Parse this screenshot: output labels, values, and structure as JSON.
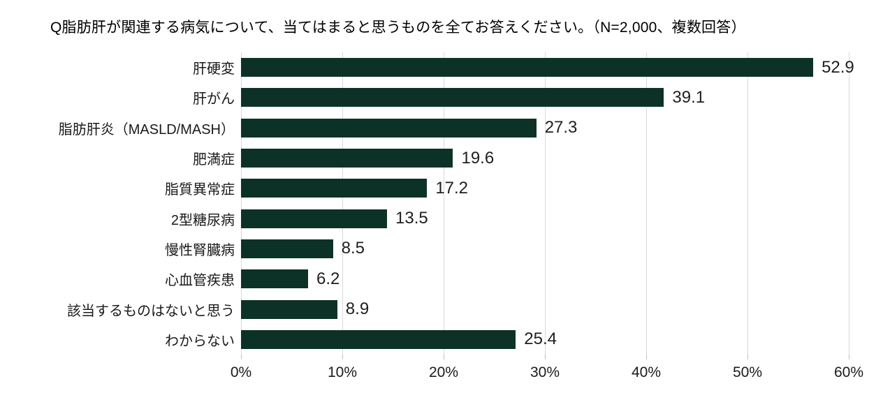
{
  "chart_data": {
    "type": "bar",
    "orientation": "horizontal",
    "title": "Q脂肪肝が関連する病気について、当てはまると思うものを全てお答えください。（N=2,000、複数回答）",
    "categories": [
      "肝硬変",
      "肝がん",
      "脂肪肝炎（MASLD/MASH）",
      "肥満症",
      "脂質異常症",
      "2型糖尿病",
      "慢性腎臓病",
      "心血管疾患",
      "該当するものはないと思う",
      "わからない"
    ],
    "values": [
      52.9,
      39.1,
      27.3,
      19.6,
      17.2,
      13.5,
      8.5,
      6.2,
      8.9,
      25.4
    ],
    "value_label_decimals": 1,
    "xlabel": "",
    "ylabel": "",
    "xlim": [
      0,
      60
    ],
    "x_ticks": [
      "0%",
      "10%",
      "20%",
      "30%",
      "40%",
      "50%",
      "60%"
    ],
    "grid": true,
    "legend": false,
    "colors": {
      "bar": "#0c3228",
      "gridline": "#d9d9d9",
      "tick": "#bfbfbf",
      "text": "#1a1a1a"
    }
  }
}
